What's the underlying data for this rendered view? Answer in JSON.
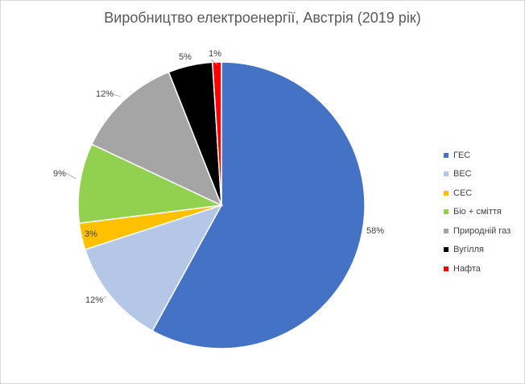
{
  "title": "Виробництво електроенергії, Австрія (2019 рік)",
  "chart_data": {
    "type": "pie",
    "title": "Виробництво електроенергії, Австрія (2019 рік)",
    "categories": [
      "ГЕС",
      "ВЕС",
      "СЕС",
      "Біо + сміття",
      "Природній газ",
      "Вугілля",
      "Нафта"
    ],
    "values": [
      58,
      12,
      3,
      9,
      12,
      5,
      1
    ],
    "labels": [
      "58%",
      "12%",
      "3%",
      "9%",
      "12%",
      "5%",
      "1%"
    ],
    "colors": [
      "#4472C4",
      "#B4C7E7",
      "#FFC000",
      "#92D050",
      "#A5A5A5",
      "#000000",
      "#FF0000"
    ],
    "legend_position": "right"
  }
}
